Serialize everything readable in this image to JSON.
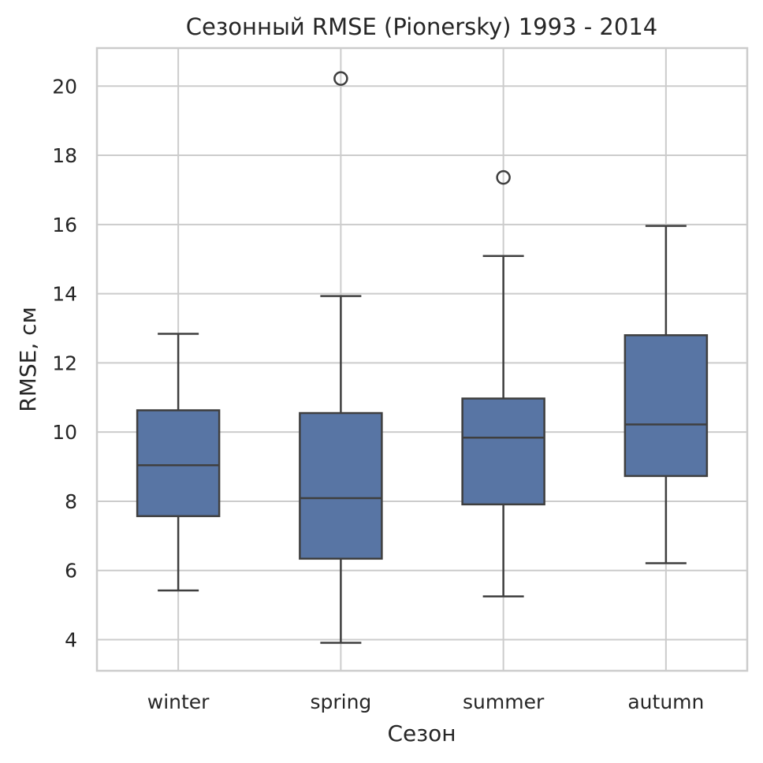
{
  "chart_data": {
    "type": "boxplot",
    "title": "Сезонный RMSE (Pionersky) 1993 - 2014",
    "xlabel": "Сезон",
    "ylabel": "RMSE, см",
    "ylim": [
      3.1,
      21.1
    ],
    "yticks": [
      4,
      6,
      8,
      10,
      12,
      14,
      16,
      18,
      20
    ],
    "grid": true,
    "box_color": "#5875a4",
    "categories": [
      "winter",
      "spring",
      "summer",
      "autumn"
    ],
    "boxes": [
      {
        "category": "winter",
        "whisker_low": 5.42,
        "q1": 7.57,
        "median": 9.04,
        "q3": 10.63,
        "whisker_high": 12.84,
        "outliers": []
      },
      {
        "category": "spring",
        "whisker_low": 3.91,
        "q1": 6.34,
        "median": 8.09,
        "q3": 10.55,
        "whisker_high": 13.93,
        "outliers": [
          20.22
        ]
      },
      {
        "category": "summer",
        "whisker_low": 5.25,
        "q1": 7.91,
        "median": 9.84,
        "q3": 10.97,
        "whisker_high": 15.09,
        "outliers": [
          17.36
        ]
      },
      {
        "category": "autumn",
        "whisker_low": 6.21,
        "q1": 8.73,
        "median": 10.22,
        "q3": 12.8,
        "whisker_high": 15.96,
        "outliers": []
      }
    ]
  }
}
